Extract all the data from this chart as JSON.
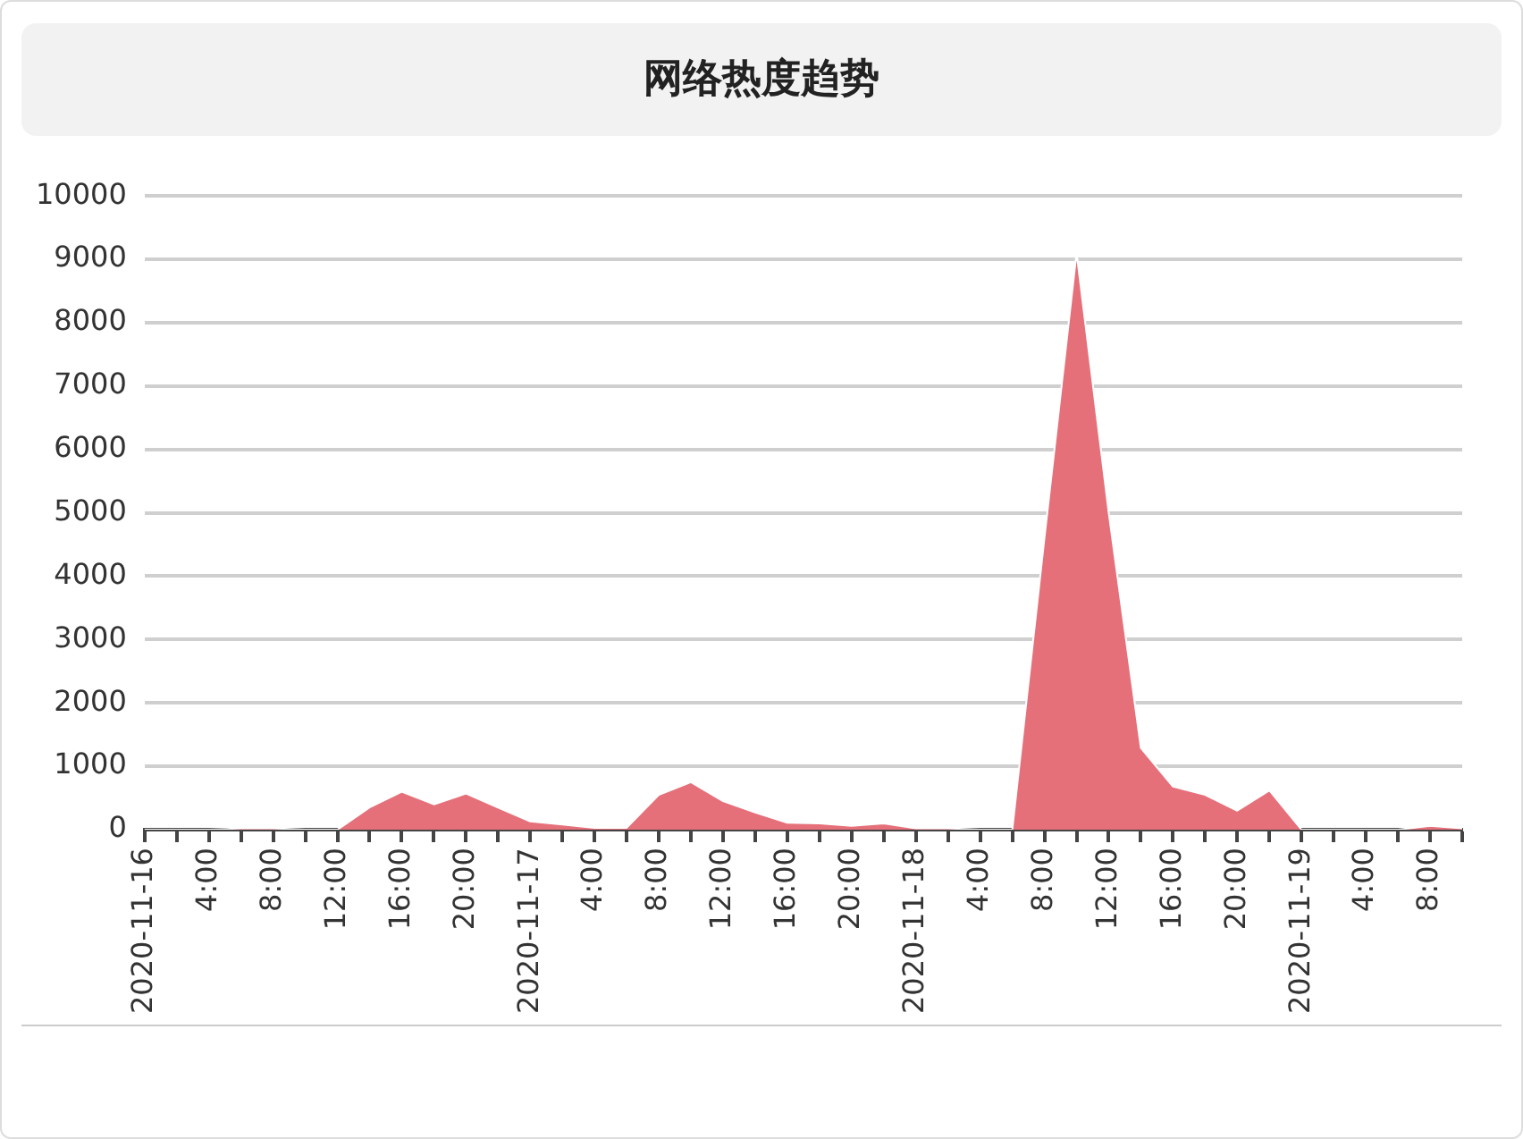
{
  "chart_data": {
    "type": "area",
    "title": "网络热度趋势",
    "categories": [
      "2020-11-16",
      null,
      "4:00",
      null,
      "8:00",
      null,
      "12:00",
      null,
      "16:00",
      null,
      "20:00",
      null,
      "2020-11-17",
      null,
      "4:00",
      null,
      "8:00",
      null,
      "12:00",
      null,
      "16:00",
      null,
      "20:00",
      null,
      "2020-11-18",
      null,
      "4:00",
      null,
      "8:00",
      null,
      "12:00",
      null,
      "16:00",
      null,
      "20:00",
      null,
      "2020-11-19",
      null,
      "4:00",
      null,
      "8:00",
      null
    ],
    "series": [
      {
        "color": "#e5707a",
        "values": [
          0,
          0,
          0,
          20,
          20,
          0,
          0,
          350,
          600,
          400,
          570,
          350,
          130,
          80,
          30,
          30,
          550,
          750,
          450,
          270,
          110,
          100,
          60,
          100,
          20,
          20,
          0,
          0,
          4600,
          9100,
          5000,
          1290,
          680,
          550,
          300,
          620,
          0,
          0,
          0,
          0,
          60,
          20
        ]
      }
    ],
    "ylim": [
      0,
      10000
    ],
    "yticks": [
      0,
      1000,
      2000,
      3000,
      4000,
      5000,
      6000,
      7000,
      8000,
      9000,
      10000
    ],
    "grid": "y",
    "legend": false
  }
}
